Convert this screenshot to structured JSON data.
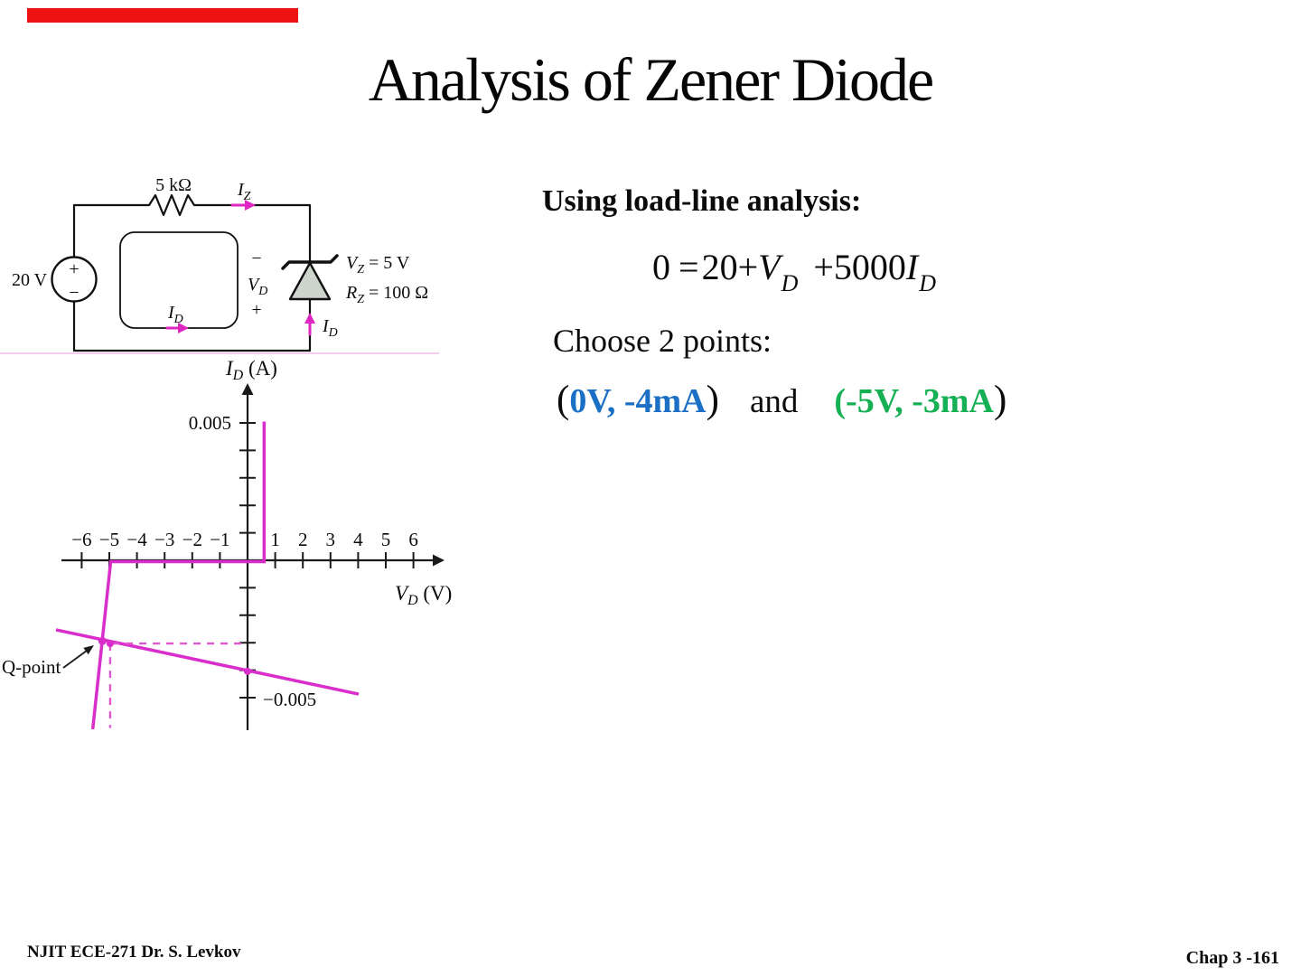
{
  "slide": {
    "title": "Analysis of Zener Diode",
    "accent_bar_color": "#ee1212",
    "background": "#ffffff",
    "footer_left": "NJIT ECE-271   Dr. S. Levkov",
    "footer_right": "Chap 3 -161"
  },
  "analysis": {
    "heading": "Using load-line analysis:",
    "equation": {
      "zero": "0",
      "equals": "=",
      "term20": "20",
      "plus1": "+",
      "v_main": "V",
      "v_sub": "D",
      "plus2": "+",
      "term5000": "5000",
      "i_main": "I",
      "i_sub": "D"
    },
    "choose_label": "Choose 2 points:",
    "points": {
      "open_paren": "(",
      "point1": "0V, -4mA",
      "close_paren1": ")",
      "conjunction": "and",
      "point2": "(-5V, -3mA",
      "close_paren2": ")",
      "point1_color": "#1b6fc4",
      "point2_color": "#14b053"
    }
  },
  "circuit": {
    "resistor_label": "5 kΩ",
    "iz": {
      "main": "I",
      "sub": "Z"
    },
    "source_label": "20 V",
    "source_plus": "+",
    "source_minus": "−",
    "vd": {
      "minus": "−",
      "main": "V",
      "sub": "D",
      "plus": "+"
    },
    "loop_current": {
      "main": "I",
      "sub": "D"
    },
    "diode_current": {
      "main": "I",
      "sub": "D"
    },
    "vz": {
      "main": "V",
      "sub": "Z",
      "rest": " = 5 V"
    },
    "rz": {
      "main": "R",
      "sub": "Z",
      "rest": " = 100 Ω"
    },
    "wire_color": "#111111",
    "arrow_color": "#de26c2",
    "zener_fill": "#ccd4cb"
  },
  "chart_data": {
    "type": "line",
    "xlabel": {
      "main": "V",
      "sub": "D",
      "rest": " (V)"
    },
    "ylabel": {
      "main": "I",
      "sub": "D",
      "rest": " (A)"
    },
    "x_ticks": [
      {
        "v": -6,
        "label": "−6"
      },
      {
        "v": -5,
        "label": "−5"
      },
      {
        "v": -4,
        "label": "−4"
      },
      {
        "v": -3,
        "label": "−3"
      },
      {
        "v": -2,
        "label": "−2"
      },
      {
        "v": -1,
        "label": "−1"
      },
      {
        "v": 1,
        "label": "1"
      },
      {
        "v": 2,
        "label": "2"
      },
      {
        "v": 3,
        "label": "3"
      },
      {
        "v": 4,
        "label": "4"
      },
      {
        "v": 5,
        "label": "5"
      },
      {
        "v": 6,
        "label": "6"
      }
    ],
    "y_ticks": [
      {
        "v_mA": 5,
        "label": "0.005"
      },
      {
        "v_mA": 4,
        "label": ""
      },
      {
        "v_mA": 3,
        "label": ""
      },
      {
        "v_mA": 2,
        "label": ""
      },
      {
        "v_mA": 1,
        "label": ""
      },
      {
        "v_mA": -1,
        "label": ""
      },
      {
        "v_mA": -2,
        "label": ""
      },
      {
        "v_mA": -3,
        "label": ""
      },
      {
        "v_mA": -4,
        "label": ""
      },
      {
        "v_mA": -5,
        "label": "−0.005"
      }
    ],
    "x_range_V": [
      -6.7,
      6.7
    ],
    "y_range_A": [
      -0.0062,
      0.0057
    ],
    "grid": false,
    "series": [
      {
        "name": "zener-diode-characteristic",
        "color": "#d92ecb",
        "points_V_mA": [
          [
            0.6,
            5.05
          ],
          [
            0.6,
            -0.05
          ],
          [
            -4.95,
            -0.05
          ],
          [
            -5.6,
            -6.15
          ]
        ]
      },
      {
        "name": "load-line",
        "color": "#d92ecb",
        "points_V_mA": [
          [
            -6.93,
            -2.53
          ],
          [
            4.02,
            -4.87
          ]
        ]
      }
    ],
    "dashed_color": "#de59d0",
    "dashed_guides": [
      {
        "name": "q-point-vertical",
        "from_V_mA": [
          -4.97,
          -3.03
        ],
        "to_V_mA": [
          -4.97,
          -6.1
        ]
      },
      {
        "name": "q-point-horizontal",
        "from_V_mA": [
          -4.9,
          -3.03
        ],
        "to_V_mA": [
          0,
          -3.03
        ]
      }
    ],
    "markers_V_mA": [
      [
        -5.25,
        -2.94
      ],
      [
        -4.97,
        -3.03
      ],
      [
        0,
        -4.04
      ]
    ],
    "q_point_label": "Q-point"
  }
}
